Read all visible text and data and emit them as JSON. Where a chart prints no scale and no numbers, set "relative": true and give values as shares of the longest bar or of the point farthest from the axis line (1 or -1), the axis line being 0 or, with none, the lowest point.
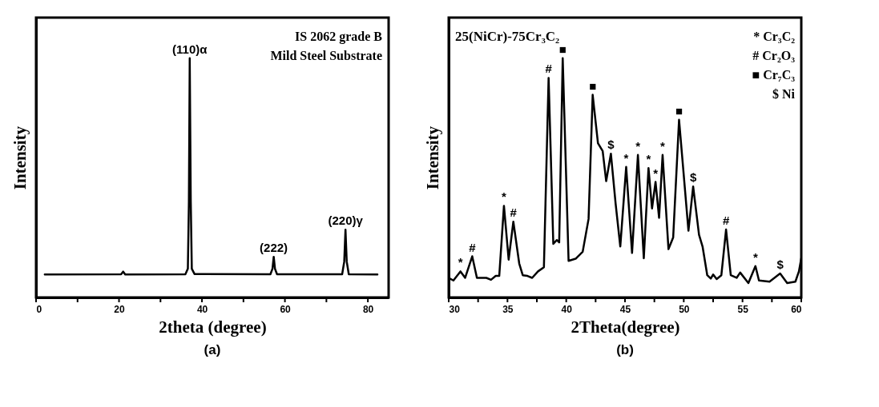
{
  "chart_data": [
    {
      "type": "line",
      "xlabel": "2theta (degree)",
      "ylabel": "Intensity",
      "relative": true,
      "xlim": [
        0,
        85
      ],
      "xticks": [
        0,
        {
          "value": 10,
          "label": null
        },
        20,
        {
          "value": 30,
          "label": null
        },
        40,
        {
          "value": 50,
          "label": null
        },
        60,
        {
          "value": 70,
          "label": null
        },
        80
      ],
      "series": [
        {
          "color": "#000000",
          "x": [
            2.1,
            20.5,
            21,
            21.5,
            36,
            36.6,
            36.85,
            37.05,
            37.3,
            37.55,
            38.2,
            56.5,
            57.0,
            57.3,
            57.6,
            58.1,
            73.8,
            74.3,
            74.6,
            74.9,
            75.4,
            82.3
          ],
          "values": [
            0.096,
            0.097,
            0.108,
            0.096,
            0.097,
            0.12,
            0.4,
            1,
            0.4,
            0.12,
            0.098,
            0.097,
            0.12,
            0.17,
            0.12,
            0.097,
            0.097,
            0.15,
            0.283,
            0.15,
            0.097,
            0.096
          ]
        }
      ],
      "annotations": [
        {
          "text": "(110)α",
          "x": 37.05,
          "y": 1
        },
        {
          "text": "(222)",
          "x": 57.3,
          "y": 0.17
        },
        {
          "text": "(220)γ",
          "x": 74.6,
          "y": 0.283
        },
        "IS 2062 grade B",
        "Mild Steel Substrate",
        "(a)"
      ]
    },
    {
      "type": "line",
      "title": "25(NiCr)-75Cr₃C₂",
      "xlabel": "2Theta(degree)",
      "ylabel": "Intensity",
      "relative": true,
      "xlim": [
        30,
        60
      ],
      "xticks": [
        30,
        {
          "value": 32.5,
          "label": null
        },
        35,
        {
          "value": 37.5,
          "label": null
        },
        40,
        {
          "value": 42.5,
          "label": null
        },
        45,
        {
          "value": 47.5,
          "label": null
        },
        50,
        {
          "value": 52.5,
          "label": null
        },
        55,
        {
          "value": 57.5,
          "label": null
        },
        60
      ],
      "series": [
        {
          "color": "#000000",
          "x": [
            30.0,
            30.4,
            31.0,
            31.4,
            32.0,
            32.4,
            33.2,
            33.6,
            34.0,
            34.3,
            34.7,
            35.1,
            35.5,
            36.0,
            36.3,
            36.7,
            37.1,
            37.6,
            38.1,
            38.5,
            38.9,
            39.2,
            39.4,
            39.7,
            40.2,
            40.8,
            41.4,
            41.9,
            42.25,
            42.7,
            43.1,
            43.4,
            43.8,
            44.2,
            44.6,
            45.1,
            45.6,
            46.1,
            46.6,
            47.0,
            47.3,
            47.6,
            47.9,
            48.2,
            48.7,
            49.1,
            49.6,
            50.4,
            50.8,
            51.3,
            51.6,
            52.0,
            52.3,
            52.5,
            52.8,
            53.2,
            53.6,
            54.0,
            54.5,
            54.8,
            55.5,
            56.1,
            56.4,
            57.3,
            58.2,
            58.8,
            59.5,
            59.8,
            60.0
          ],
          "values": [
            0.082,
            0.071,
            0.109,
            0.082,
            0.172,
            0.082,
            0.082,
            0.074,
            0.09,
            0.09,
            0.383,
            0.158,
            0.317,
            0.142,
            0.093,
            0.09,
            0.082,
            0.109,
            0.126,
            0.918,
            0.224,
            0.24,
            0.23,
            1,
            0.153,
            0.162,
            0.191,
            0.328,
            0.847,
            0.645,
            0.612,
            0.486,
            0.601,
            0.393,
            0.213,
            0.546,
            0.186,
            0.596,
            0.164,
            0.541,
            0.372,
            0.483,
            0.333,
            0.596,
            0.202,
            0.251,
            0.743,
            0.279,
            0.464,
            0.262,
            0.213,
            0.093,
            0.079,
            0.096,
            0.077,
            0.093,
            0.284,
            0.093,
            0.082,
            0.104,
            0.06,
            0.131,
            0.071,
            0.066,
            0.1,
            0.06,
            0.066,
            0.109,
            0.164
          ]
        }
      ],
      "annotations": [
        {
          "text": "*",
          "x": 31.0,
          "y": 0.109
        },
        {
          "text": "#",
          "x": 32.0,
          "y": 0.172
        },
        {
          "text": "*",
          "x": 34.7,
          "y": 0.383
        },
        {
          "text": "#",
          "x": 35.5,
          "y": 0.317
        },
        {
          "text": "#",
          "x": 38.5,
          "y": 0.918
        },
        {
          "text": "■",
          "x": 39.7,
          "y": 1
        },
        {
          "text": "■",
          "x": 42.25,
          "y": 0.847
        },
        {
          "text": "$",
          "x": 43.8,
          "y": 0.601
        },
        {
          "text": "*",
          "x": 45.1,
          "y": 0.546
        },
        {
          "text": "*",
          "x": 46.1,
          "y": 0.596
        },
        {
          "text": "*",
          "x": 47.0,
          "y": 0.541
        },
        {
          "text": "*",
          "x": 47.6,
          "y": 0.483
        },
        {
          "text": "*",
          "x": 48.2,
          "y": 0.596
        },
        {
          "text": "■",
          "x": 49.6,
          "y": 0.743
        },
        {
          "text": "$",
          "x": 50.8,
          "y": 0.464
        },
        {
          "text": "#",
          "x": 53.6,
          "y": 0.284
        },
        {
          "text": "*",
          "x": 56.1,
          "y": 0.131
        },
        {
          "text": "$",
          "x": 58.2,
          "y": 0.1
        },
        "* Cr₃C₂",
        "# Cr₂O₃",
        "■ Cr₇C₃",
        "$ Ni",
        "(b)"
      ]
    }
  ]
}
